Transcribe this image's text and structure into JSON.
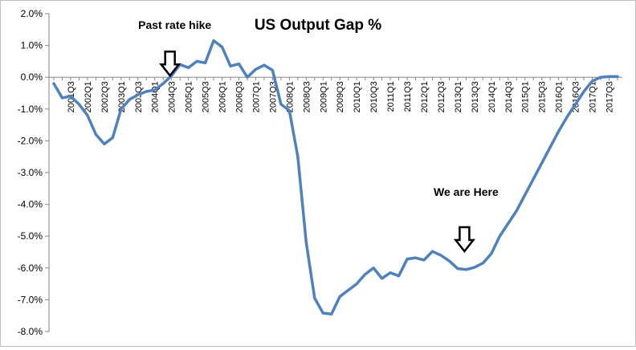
{
  "chart_data": {
    "type": "line",
    "title": "US Output Gap %",
    "xlabel": "",
    "ylabel": "",
    "ylim": [
      -8.0,
      2.0
    ],
    "y_ticks": [
      "2.0%",
      "1.0%",
      "0.0%",
      "-1.0%",
      "-2.0%",
      "-3.0%",
      "-4.0%",
      "-5.0%",
      "-6.0%",
      "-7.0%",
      "-8.0%"
    ],
    "y_tick_values": [
      2,
      1,
      0,
      -1,
      -2,
      -3,
      -4,
      -5,
      -6,
      -7,
      -8
    ],
    "grid": false,
    "legend": "none",
    "x_tick_labels": [
      "2001Q3",
      "2002Q1",
      "2002Q3",
      "2003Q1",
      "2003Q3",
      "2004Q1",
      "2004Q3",
      "2005Q1",
      "2005Q3",
      "2006Q1",
      "2006Q3",
      "2007Q1",
      "2007Q3",
      "2008Q1",
      "2008Q3",
      "2009Q1",
      "2009Q3",
      "2010Q1",
      "2010Q3",
      "2011Q1",
      "2011Q3",
      "2012Q1",
      "2012Q3",
      "2013Q1",
      "2013Q3",
      "2014Q1",
      "2014Q3",
      "2015Q1",
      "2015Q3",
      "2016Q1",
      "2016Q3",
      "2017Q1",
      "2017Q3"
    ],
    "series": [
      {
        "color": "#4f81bd",
        "x": [
          "2001Q1",
          "2001Q2",
          "2001Q3",
          "2001Q4",
          "2002Q1",
          "2002Q2",
          "2002Q3",
          "2002Q4",
          "2003Q1",
          "2003Q2",
          "2003Q3",
          "2003Q4",
          "2004Q1",
          "2004Q2",
          "2004Q3",
          "2004Q4",
          "2005Q1",
          "2005Q2",
          "2005Q3",
          "2005Q4",
          "2006Q1",
          "2006Q2",
          "2006Q3",
          "2006Q4",
          "2007Q1",
          "2007Q2",
          "2007Q3",
          "2007Q4",
          "2008Q1",
          "2008Q2",
          "2008Q3",
          "2008Q4",
          "2009Q1",
          "2009Q2",
          "2009Q3",
          "2009Q4",
          "2010Q1",
          "2010Q2",
          "2010Q3",
          "2010Q4",
          "2011Q1",
          "2011Q2",
          "2011Q3",
          "2011Q4",
          "2012Q1",
          "2012Q2",
          "2012Q3",
          "2012Q4",
          "2013Q1",
          "2013Q2",
          "2013Q3",
          "2013Q4",
          "2014Q1",
          "2014Q2",
          "2014Q3",
          "2014Q4",
          "2015Q1",
          "2015Q2",
          "2015Q3",
          "2015Q4",
          "2016Q1",
          "2016Q2",
          "2016Q3",
          "2016Q4",
          "2017Q1",
          "2017Q2",
          "2017Q3",
          "2017Q4"
        ],
        "values": [
          -0.2,
          -0.65,
          -0.6,
          -0.85,
          -1.2,
          -1.8,
          -2.1,
          -1.9,
          -1.0,
          -0.7,
          -0.55,
          -0.45,
          -0.4,
          -0.2,
          0.05,
          0.4,
          0.3,
          0.5,
          0.45,
          1.15,
          0.95,
          0.35,
          0.42,
          0.0,
          0.25,
          0.38,
          0.22,
          -0.85,
          -1.05,
          -2.5,
          -5.2,
          -6.95,
          -7.42,
          -7.45,
          -6.9,
          -6.7,
          -6.5,
          -6.2,
          -6.0,
          -6.33,
          -6.15,
          -6.25,
          -5.72,
          -5.68,
          -5.75,
          -5.48,
          -5.6,
          -5.78,
          -6.02,
          -6.05,
          -5.98,
          -5.85,
          -5.55,
          -5.0,
          -4.6,
          -4.2,
          -3.7,
          -3.2,
          -2.7,
          -2.2,
          -1.7,
          -1.25,
          -0.85,
          -0.45,
          -0.12,
          0.0,
          0.02,
          0.02
        ]
      }
    ],
    "annotations": [
      {
        "text": "Past rate hike",
        "x": "2004Q3",
        "arrow_to_y": 0.0
      },
      {
        "text": "We are Here",
        "x": "2013Q2",
        "arrow_to_y": -5.6
      }
    ]
  }
}
